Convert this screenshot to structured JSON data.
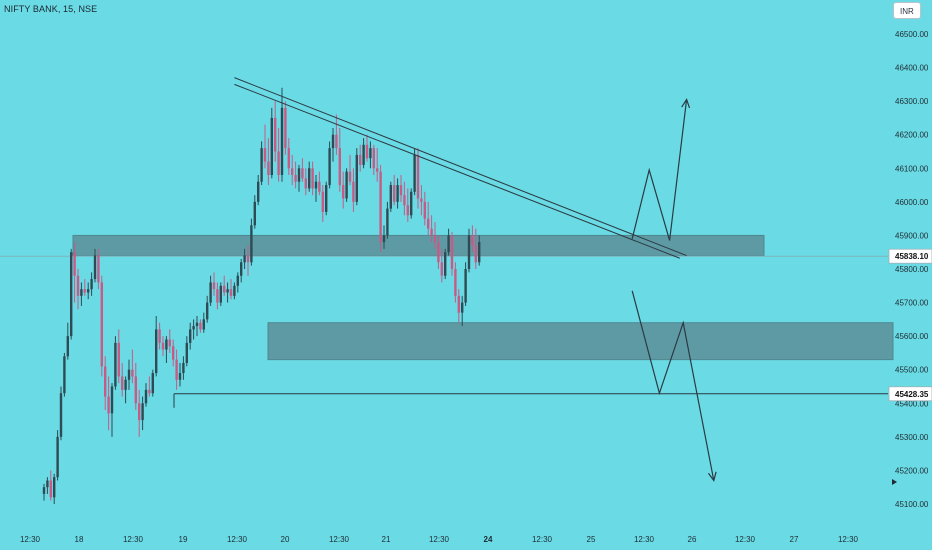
{
  "header": {
    "title": "NIFTY BANK, 15, NSE",
    "currency": "INR"
  },
  "colors": {
    "background": "#6adbe4",
    "up": "#2e4a54",
    "down": "#c85a86",
    "zone": "#5e9aa4",
    "line": "#2b3a44"
  },
  "chart_data": {
    "type": "candlestick",
    "ylim": [
      45050,
      46600
    ],
    "y_ticks": [
      "46500.00",
      "46400.00",
      "46300.00",
      "46200.00",
      "46100.00",
      "46000.00",
      "45900.00",
      "45800.00",
      "45700.00",
      "45600.00",
      "45500.00",
      "45400.00",
      "45300.00",
      "45200.00",
      "45100.00"
    ],
    "x_ticks": [
      "12:30",
      "18",
      "12:30",
      "19",
      "12:30",
      "20",
      "12:30",
      "21",
      "12:30",
      "24",
      "12:30",
      "25",
      "12:30",
      "26",
      "12:30",
      "27",
      "12:30"
    ],
    "price_labels": [
      {
        "text": "45838.10",
        "value": 45838.1
      },
      {
        "text": "45428.35",
        "value": 45428.35
      }
    ],
    "zones": [
      {
        "from": 45840,
        "to": 45900
      },
      {
        "from": 45530,
        "to": 45640
      }
    ],
    "horizontal_lines": [
      45838.1,
      45428.35
    ],
    "trendlines": [
      [
        {
          "bar": 56,
          "price": 46370
        },
        {
          "bar": 189,
          "price": 45840
        }
      ],
      [
        {
          "bar": 56,
          "price": 46350
        },
        {
          "bar": 187,
          "price": 45832
        }
      ]
    ],
    "projection_up": [
      {
        "bar": 173,
        "price": 45890
      },
      {
        "bar": 178,
        "price": 46095
      },
      {
        "bar": 184,
        "price": 45885
      },
      {
        "bar": 189,
        "price": 46305
      }
    ],
    "projection_down": [
      {
        "bar": 173,
        "price": 45735
      },
      {
        "bar": 181,
        "price": 45430
      },
      {
        "bar": 188,
        "price": 45640
      },
      {
        "bar": 197,
        "price": 45170
      }
    ],
    "candles": [
      [
        45130,
        45160,
        45110,
        45150
      ],
      [
        45150,
        45180,
        45130,
        45170
      ],
      [
        45170,
        45200,
        45110,
        45120
      ],
      [
        45120,
        45190,
        45100,
        45180
      ],
      [
        45180,
        45320,
        45170,
        45300
      ],
      [
        45300,
        45450,
        45290,
        45430
      ],
      [
        45430,
        45550,
        45420,
        45540
      ],
      [
        45540,
        45640,
        45530,
        45600
      ],
      [
        45600,
        45860,
        45590,
        45850
      ],
      [
        45850,
        45880,
        45700,
        45780
      ],
      [
        45780,
        45800,
        45680,
        45720
      ],
      [
        45720,
        45760,
        45690,
        45740
      ],
      [
        45740,
        45770,
        45720,
        45730
      ],
      [
        45730,
        45760,
        45710,
        45740
      ],
      [
        45740,
        45790,
        45720,
        45770
      ],
      [
        45770,
        45860,
        45760,
        45840
      ],
      [
        45840,
        45860,
        45740,
        45760
      ],
      [
        45760,
        45780,
        45480,
        45510
      ],
      [
        45510,
        45540,
        45380,
        45420
      ],
      [
        45420,
        45480,
        45320,
        45370
      ],
      [
        45370,
        45460,
        45300,
        45450
      ],
      [
        45450,
        45600,
        45440,
        45580
      ],
      [
        45580,
        45620,
        45460,
        45480
      ],
      [
        45480,
        45520,
        45420,
        45440
      ],
      [
        45440,
        45480,
        45400,
        45470
      ],
      [
        45470,
        45530,
        45440,
        45500
      ],
      [
        45500,
        45560,
        45460,
        45480
      ],
      [
        45480,
        45520,
        45380,
        45400
      ],
      [
        45400,
        45440,
        45300,
        45350
      ],
      [
        45350,
        45420,
        45320,
        45400
      ],
      [
        45400,
        45460,
        45390,
        45440
      ],
      [
        45440,
        45480,
        45420,
        45430
      ],
      [
        45430,
        45500,
        45420,
        45490
      ],
      [
        45490,
        45660,
        45480,
        45620
      ],
      [
        45620,
        45640,
        45560,
        45580
      ],
      [
        45580,
        45600,
        45540,
        45560
      ],
      [
        45560,
        45600,
        45520,
        45590
      ],
      [
        45590,
        45620,
        45550,
        45570
      ],
      [
        45570,
        45590,
        45510,
        45530
      ],
      [
        45530,
        45560,
        45440,
        45470
      ],
      [
        45470,
        45520,
        45450,
        45490
      ],
      [
        45490,
        45540,
        45470,
        45520
      ],
      [
        45520,
        45600,
        45510,
        45580
      ],
      [
        45580,
        45640,
        45560,
        45620
      ],
      [
        45620,
        45650,
        45590,
        45630
      ],
      [
        45630,
        45660,
        45600,
        45640
      ],
      [
        45640,
        45650,
        45610,
        45620
      ],
      [
        45620,
        45670,
        45610,
        45650
      ],
      [
        45650,
        45720,
        45640,
        45700
      ],
      [
        45700,
        45780,
        45690,
        45760
      ],
      [
        45760,
        45790,
        45720,
        45740
      ],
      [
        45740,
        45760,
        45680,
        45700
      ],
      [
        45700,
        45760,
        45690,
        45750
      ],
      [
        45750,
        45780,
        45720,
        45730
      ],
      [
        45730,
        45760,
        45700,
        45740
      ],
      [
        45740,
        45770,
        45710,
        45720
      ],
      [
        45720,
        45760,
        45710,
        45750
      ],
      [
        45750,
        45790,
        45730,
        45780
      ],
      [
        45780,
        45830,
        45760,
        45820
      ],
      [
        45820,
        45860,
        45800,
        45840
      ],
      [
        45840,
        45870,
        45780,
        45820
      ],
      [
        45820,
        45950,
        45810,
        45930
      ],
      [
        45930,
        46020,
        45920,
        46000
      ],
      [
        46000,
        46080,
        45990,
        46060
      ],
      [
        46060,
        46180,
        46050,
        46160
      ],
      [
        46160,
        46230,
        46100,
        46120
      ],
      [
        46120,
        46190,
        46050,
        46080
      ],
      [
        46080,
        46280,
        46070,
        46250
      ],
      [
        46250,
        46300,
        46120,
        46150
      ],
      [
        46150,
        46220,
        46060,
        46080
      ],
      [
        46080,
        46340,
        46060,
        46280
      ],
      [
        46280,
        46300,
        46140,
        46160
      ],
      [
        46160,
        46190,
        46080,
        46100
      ],
      [
        46100,
        46140,
        46050,
        46080
      ],
      [
        46080,
        46120,
        46040,
        46060
      ],
      [
        46060,
        46110,
        46030,
        46100
      ],
      [
        46100,
        46130,
        46060,
        46070
      ],
      [
        46070,
        46100,
        46020,
        46040
      ],
      [
        46040,
        46120,
        46030,
        46100
      ],
      [
        46100,
        46120,
        46020,
        46040
      ],
      [
        46040,
        46080,
        46000,
        46060
      ],
      [
        46060,
        46090,
        46020,
        46030
      ],
      [
        46030,
        46050,
        45940,
        45970
      ],
      [
        45970,
        46060,
        45960,
        46050
      ],
      [
        46050,
        46180,
        46040,
        46160
      ],
      [
        46160,
        46220,
        46120,
        46200
      ],
      [
        46200,
        46260,
        46140,
        46160
      ],
      [
        46160,
        46220,
        46030,
        46050
      ],
      [
        46050,
        46090,
        45980,
        46010
      ],
      [
        46010,
        46100,
        46000,
        46090
      ],
      [
        46090,
        46140,
        46050,
        46060
      ],
      [
        46060,
        46100,
        45970,
        46000
      ],
      [
        46000,
        46160,
        45990,
        46140
      ],
      [
        46140,
        46170,
        46090,
        46110
      ],
      [
        46110,
        46190,
        46100,
        46170
      ],
      [
        46170,
        46200,
        46120,
        46130
      ],
      [
        46130,
        46180,
        46100,
        46160
      ],
      [
        46160,
        46170,
        46080,
        46100
      ],
      [
        46100,
        46160,
        46060,
        46090
      ],
      [
        46090,
        46110,
        45850,
        45880
      ],
      [
        45880,
        45930,
        45860,
        45900
      ],
      [
        45900,
        46000,
        45890,
        45980
      ],
      [
        45980,
        46060,
        45970,
        46050
      ],
      [
        46050,
        46080,
        45990,
        46000
      ],
      [
        46000,
        46070,
        45980,
        46050
      ],
      [
        46050,
        46080,
        46000,
        46020
      ],
      [
        46020,
        46060,
        45960,
        45990
      ],
      [
        45990,
        46040,
        45940,
        45960
      ],
      [
        45960,
        46040,
        45950,
        46030
      ],
      [
        46030,
        46160,
        46020,
        46140
      ],
      [
        46140,
        46160,
        45980,
        46010
      ],
      [
        46010,
        46050,
        45960,
        46000
      ],
      [
        46000,
        46030,
        45930,
        45950
      ],
      [
        45950,
        46000,
        45900,
        45920
      ],
      [
        45920,
        45960,
        45880,
        45900
      ],
      [
        45900,
        45940,
        45860,
        45880
      ],
      [
        45880,
        45900,
        45800,
        45820
      ],
      [
        45820,
        45860,
        45760,
        45780
      ],
      [
        45780,
        45860,
        45770,
        45850
      ],
      [
        45850,
        45920,
        45840,
        45900
      ],
      [
        45900,
        45910,
        45780,
        45800
      ],
      [
        45800,
        45820,
        45700,
        45720
      ],
      [
        45720,
        45740,
        45640,
        45670
      ],
      [
        45670,
        45720,
        45630,
        45700
      ],
      [
        45700,
        45820,
        45690,
        45800
      ],
      [
        45800,
        45920,
        45790,
        45900
      ],
      [
        45900,
        45930,
        45850,
        45870
      ],
      [
        45870,
        45920,
        45800,
        45820
      ],
      [
        45820,
        45900,
        45810,
        45880
      ]
    ]
  }
}
